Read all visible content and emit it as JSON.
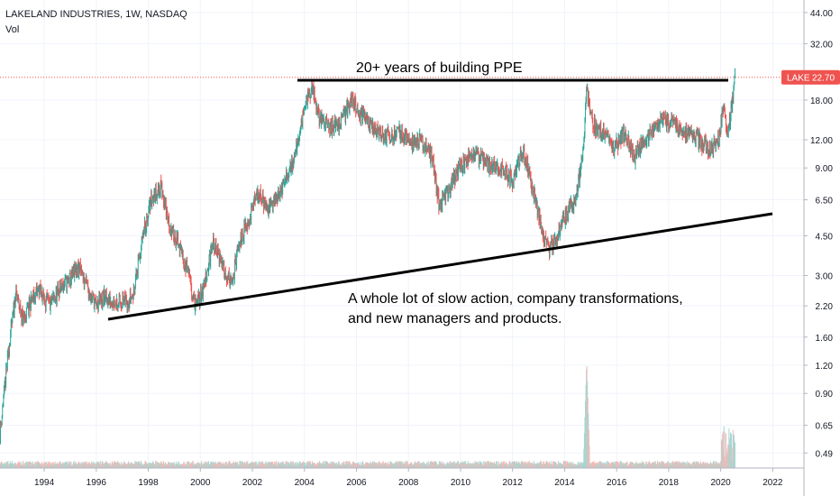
{
  "header": {
    "title": "LAKELAND INDUSTRIES, 1W, NASDAQ",
    "subtitle": "Vol"
  },
  "price_badge": {
    "symbol": "LAKE",
    "value": "22.70"
  },
  "annotations": {
    "top": "20+ years of building PPE",
    "bottom_line1": "A whole lot of slow action, company transformations,",
    "bottom_line2": "and new managers and products."
  },
  "colors": {
    "up": "#26a69a",
    "down": "#ef5350",
    "badge": "#ef5350",
    "line": "#000000",
    "vol_up": "#a5d6d1",
    "vol_down": "#f5b7b5"
  },
  "chart_data": {
    "type": "line",
    "title": "LAKELAND INDUSTRIES, 1W, NASDAQ",
    "scale": "log",
    "ylim": [
      0.42,
      50
    ],
    "xlim": [
      1992.3,
      2023.2
    ],
    "yticks": [
      "44.00",
      "32.00",
      "18.00",
      "12.00",
      "9.00",
      "6.50",
      "4.50",
      "3.00",
      "2.20",
      "1.60",
      "1.20",
      "0.90",
      "0.65",
      "0.49"
    ],
    "xticks": [
      "1994",
      "1996",
      "1998",
      "2000",
      "2002",
      "2004",
      "2006",
      "2008",
      "2010",
      "2012",
      "2014",
      "2016",
      "2018",
      "2020",
      "2022"
    ],
    "current_price": 22.7,
    "series": [
      {
        "x": [
          1992.3,
          1992.6,
          1992.9,
          1993.2,
          1993.5,
          1993.8,
          1994.2,
          1994.6,
          1995.0,
          1995.3,
          1995.7,
          1996.0,
          1996.3,
          1996.7,
          1997.0,
          1997.4,
          1997.8,
          1998.1,
          1998.5,
          1998.8,
          1999.1,
          1999.5,
          1999.8,
          2000.1,
          2000.5,
          2000.8,
          2001.2,
          2001.5,
          2001.9,
          2002.2,
          2002.6,
          2002.9,
          2003.3,
          2003.7,
          2004.0,
          2004.3,
          2004.6,
          2005.0,
          2005.4,
          2005.8,
          2006.1,
          2006.5,
          2006.9,
          2007.3,
          2007.7,
          2008.1,
          2008.5,
          2008.9,
          2009.2,
          2009.6,
          2010.0,
          2010.4,
          2010.8,
          2011.2,
          2011.6,
          2012.0,
          2012.4,
          2012.8,
          2013.2,
          2013.4,
          2013.7,
          2014.0,
          2014.4,
          2014.7,
          2014.85,
          2015.1,
          2015.5,
          2015.9,
          2016.3,
          2016.7,
          2017.0,
          2017.4,
          2017.8,
          2018.2,
          2018.6,
          2019.0,
          2019.3,
          2019.7,
          2019.95,
          2020.1,
          2020.25,
          2020.4,
          2020.55
        ],
        "y": [
          0.6,
          1.3,
          2.5,
          1.9,
          2.3,
          2.6,
          2.2,
          2.6,
          2.9,
          3.3,
          2.6,
          2.2,
          2.4,
          2.3,
          2.3,
          2.4,
          4.5,
          6.5,
          7.5,
          5.0,
          4.3,
          3.2,
          2.2,
          2.6,
          4.2,
          3.5,
          2.7,
          4.2,
          5.5,
          7.0,
          6.0,
          6.5,
          8.0,
          11.0,
          17.0,
          20.0,
          15.0,
          13.5,
          14.5,
          18.0,
          16.0,
          14.0,
          13.0,
          12.5,
          13.0,
          11.5,
          12.0,
          10.0,
          6.0,
          7.5,
          9.0,
          10.5,
          10.0,
          9.0,
          9.0,
          8.0,
          11.0,
          7.0,
          4.5,
          3.9,
          4.5,
          5.5,
          6.5,
          10.0,
          20.0,
          14.0,
          13.0,
          11.0,
          13.0,
          10.0,
          12.0,
          13.0,
          15.0,
          14.0,
          13.0,
          12.5,
          11.5,
          11.0,
          12.5,
          17.0,
          13.0,
          16.0,
          22.7
        ]
      }
    ]
  }
}
